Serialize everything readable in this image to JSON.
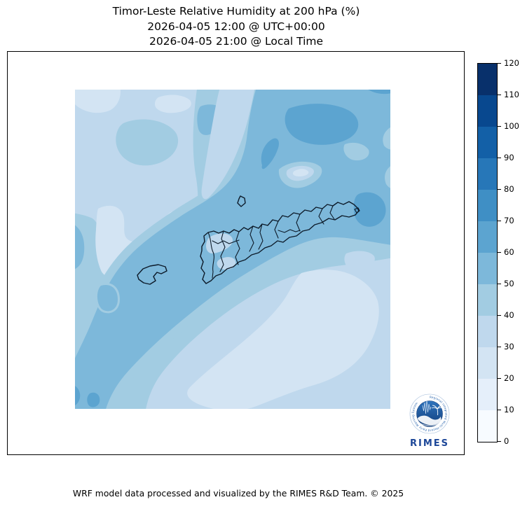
{
  "title": {
    "line1": "Timor-Leste Relative Humidity at 200 hPa (%)",
    "line2": "2026-04-05 12:00 @ UTC+00:00",
    "line3": "2026-04-05 21:00 @ Local Time"
  },
  "footer": {
    "credit": "WRF model data processed and visualized by the RIMES R&D Team. © 2025"
  },
  "logo": {
    "wordmark": "RIMES",
    "ring_text": "Regional Integrated Multi-Hazard Early Warning System",
    "wordmark_color": "#1d4798",
    "emblem_blue": "#2f74bd"
  },
  "colorbar": {
    "min": 0,
    "max": 120,
    "step": 10,
    "tick_labels": [
      "0",
      "10",
      "20",
      "30",
      "40",
      "50",
      "60",
      "70",
      "80",
      "90",
      "100",
      "110",
      "120"
    ],
    "colors_low_to_high": [
      "#f7fbff",
      "#e5effa",
      "#d3e4f3",
      "#bfd8ed",
      "#a2cce2",
      "#7db8da",
      "#5ca4d0",
      "#3f8fc5",
      "#2777b8",
      "#1360a7",
      "#08488f",
      "#08306b"
    ]
  },
  "map": {
    "palette": {
      "c1": "#d3e4f3",
      "c2": "#bfd8ed",
      "c3": "#a2cce2",
      "c4": "#7db8da",
      "c5": "#5ca4d0"
    },
    "boundary_color": "#0d1b2a",
    "features": [
      "Timor-Leste main island with municipal boundaries",
      "Atauro Island",
      "Oecusse enclave",
      "Jaco Island"
    ]
  },
  "chart_data": {
    "type": "heatmap",
    "title": "Timor-Leste Relative Humidity at 200 hPa (%)",
    "subtitle_utc": "2026-04-05 12:00 @ UTC+00:00",
    "subtitle_local": "2026-04-05 21:00 @ Local Time",
    "variable": "Relative Humidity",
    "level": "200 hPa",
    "unit": "%",
    "colormap": "Blues",
    "levels": [
      0,
      10,
      20,
      30,
      40,
      50,
      60,
      70,
      80,
      90,
      100,
      110,
      120
    ],
    "colorbar_orientation": "vertical-right",
    "colorbar_tick_labels": [
      "0",
      "10",
      "20",
      "30",
      "40",
      "50",
      "60",
      "70",
      "80",
      "90",
      "100",
      "110",
      "120"
    ],
    "colorbar_colors": [
      "#f7fbff",
      "#e5effa",
      "#d3e4f3",
      "#bfd8ed",
      "#a2cce2",
      "#7db8da",
      "#5ca4d0",
      "#3f8fc5",
      "#2777b8",
      "#1360a7",
      "#08488f",
      "#08306b"
    ],
    "value_range_shown_on_map_percent": [
      20,
      70
    ],
    "map_pattern": "higher humidity (50-70%) band across northeast and along a SW diagonal band to the lower-left corner; lower humidity (20-40%) in northwest and a broad light region (20-30%) in the southeast",
    "overlay": "Timor-Leste municipality boundaries drawn in black; no lat/lon axis ticks; no grid",
    "grid": false
  }
}
